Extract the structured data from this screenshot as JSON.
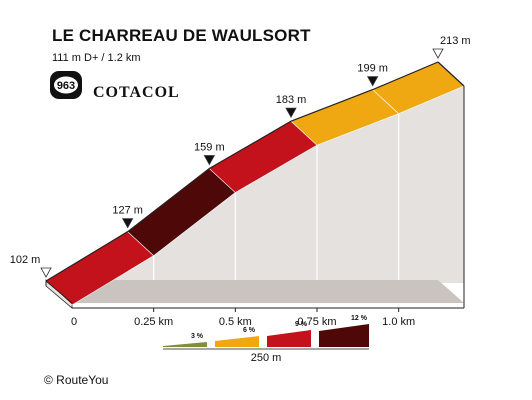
{
  "header": {
    "title": "LE CHARREAU DE WAULSORT",
    "subtitle": "111 m D+ / 1.2 km",
    "badge_number": "963",
    "brand": "COTACOL"
  },
  "footer": {
    "copyright": "© RouteYou"
  },
  "colors": {
    "grade_3": "#7f8f3e",
    "grade_6": "#f0a812",
    "grade_9": "#c4121c",
    "grade_12": "#4e0808",
    "side_face": "#e5e1de",
    "side_top": "#c9c4c0",
    "block_edge": "#d2cdca",
    "outline": "#222222"
  },
  "chart_data": {
    "type": "area",
    "title": "LE CHARREAU DE WAULSORT",
    "subtitle": "111 m D+ / 1.2 km",
    "xlabel": "",
    "ylabel": "",
    "x_unit": "km",
    "y_unit": "m",
    "xlim": [
      0,
      1.2
    ],
    "points": [
      {
        "km": 0.0,
        "elevation": 102,
        "label": "102 m",
        "marker": "open"
      },
      {
        "km": 0.25,
        "elevation": 127,
        "label": "127 m",
        "marker": "filled"
      },
      {
        "km": 0.5,
        "elevation": 159,
        "label": "159 m",
        "marker": "filled"
      },
      {
        "km": 0.75,
        "elevation": 183,
        "label": "183 m",
        "marker": "filled"
      },
      {
        "km": 1.0,
        "elevation": 199,
        "label": "199 m",
        "marker": "filled"
      },
      {
        "km": 1.2,
        "elevation": 213,
        "label": "213 m",
        "marker": "open"
      }
    ],
    "segments": [
      {
        "from_km": 0.0,
        "to_km": 0.25,
        "grade_class": "grade_9"
      },
      {
        "from_km": 0.25,
        "to_km": 0.5,
        "grade_class": "grade_12"
      },
      {
        "from_km": 0.5,
        "to_km": 0.75,
        "grade_class": "grade_9"
      },
      {
        "from_km": 0.75,
        "to_km": 1.0,
        "grade_class": "grade_6"
      },
      {
        "from_km": 1.0,
        "to_km": 1.2,
        "grade_class": "grade_6"
      }
    ],
    "x_ticks": [
      {
        "km": 0.0,
        "label": "0"
      },
      {
        "km": 0.25,
        "label": "0.25 km"
      },
      {
        "km": 0.5,
        "label": "0.5 km"
      },
      {
        "km": 0.75,
        "label": "0.75 km"
      },
      {
        "km": 1.0,
        "label": "1.0 km"
      }
    ],
    "legend": {
      "entries": [
        {
          "label": "3 %",
          "grade_class": "grade_3"
        },
        {
          "label": "6 %",
          "grade_class": "grade_6"
        },
        {
          "label": "9 %",
          "grade_class": "grade_9"
        },
        {
          "label": "12 %",
          "grade_class": "grade_12"
        }
      ],
      "scale_label": "250 m",
      "placement": "bottom-center"
    }
  }
}
